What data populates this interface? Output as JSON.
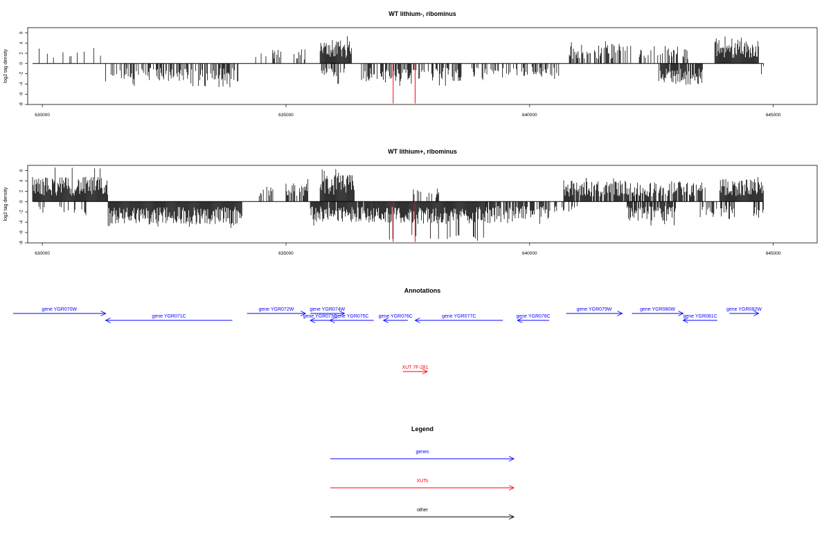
{
  "colors": {
    "genes": "#0000ff",
    "xuts": "#ff0000",
    "other": "#000000",
    "axis": "#000000"
  },
  "chart_data": [
    {
      "type": "bar",
      "title": "WT lithium-, ribominus",
      "xlabel": "",
      "ylabel": "log2 tag density",
      "xlim": [
        629700,
        645900
      ],
      "ylim": [
        -8,
        7
      ],
      "x_ticks": [
        630000,
        635000,
        640000,
        645000
      ],
      "x_tick_labels": [
        "630000",
        "635000",
        "640000",
        "645000"
      ],
      "y_ticks": [
        6,
        4,
        2,
        0,
        -2,
        -4,
        -6,
        -8
      ],
      "y_tick_labels": [
        "6",
        "4",
        "2",
        "0",
        "-2",
        "-4",
        "-6",
        "-8"
      ],
      "baseline_range": [
        629800,
        644800
      ],
      "forward_clusters": [
        {
          "start": 629850,
          "end": 631250,
          "density": 0.18,
          "mean": 2.2,
          "max": 3.4
        },
        {
          "start": 634350,
          "end": 634900,
          "density": 0.3,
          "mean": 2.0,
          "max": 3.2
        },
        {
          "start": 635150,
          "end": 635400,
          "density": 0.4,
          "mean": 2.0,
          "max": 3.4
        },
        {
          "start": 635700,
          "end": 636350,
          "density": 1.0,
          "mean": 3.0,
          "max": 5.4
        },
        {
          "start": 640800,
          "end": 642100,
          "density": 0.55,
          "mean": 2.6,
          "max": 4.4
        },
        {
          "start": 642250,
          "end": 643350,
          "density": 0.4,
          "mean": 2.4,
          "max": 4.6
        },
        {
          "start": 643800,
          "end": 644700,
          "density": 1.0,
          "mean": 3.1,
          "max": 5.4
        }
      ],
      "reverse_clusters": [
        {
          "start": 631300,
          "end": 634050,
          "density": 0.55,
          "mean": 2.4,
          "max": 4.8
        },
        {
          "start": 635700,
          "end": 636300,
          "density": 0.45,
          "mean": 2.0,
          "max": 4.2
        },
        {
          "start": 636550,
          "end": 638600,
          "density": 0.6,
          "mean": 2.4,
          "max": 4.4
        },
        {
          "start": 638800,
          "end": 639700,
          "density": 0.4,
          "mean": 2.0,
          "max": 3.6
        },
        {
          "start": 639700,
          "end": 640600,
          "density": 0.45,
          "mean": 1.8,
          "max": 3.2
        },
        {
          "start": 642650,
          "end": 643550,
          "density": 0.9,
          "mean": 2.8,
          "max": 4.6
        },
        {
          "start": 644700,
          "end": 644800,
          "density": 0.3,
          "mean": 1.5,
          "max": 2.2
        }
      ],
      "xut_signal": [
        {
          "x": 637200,
          "value": -7.8
        },
        {
          "x": 637650,
          "value": -7.8
        }
      ]
    },
    {
      "type": "bar",
      "title": "WT lithium+, ribominus",
      "xlabel": "",
      "ylabel": "log2 tag density",
      "xlim": [
        629700,
        645900
      ],
      "ylim": [
        -8,
        7
      ],
      "x_ticks": [
        630000,
        635000,
        640000,
        645000
      ],
      "x_tick_labels": [
        "630000",
        "635000",
        "640000",
        "645000"
      ],
      "y_ticks": [
        6,
        4,
        2,
        0,
        -2,
        -4,
        -6,
        -8
      ],
      "y_tick_labels": [
        "6",
        "4",
        "2",
        "0",
        "-2",
        "-4",
        "-6",
        "-8"
      ],
      "baseline_range": [
        629800,
        644800
      ],
      "forward_clusters": [
        {
          "start": 629800,
          "end": 631350,
          "density": 1.0,
          "mean": 3.3,
          "max": 6.6
        },
        {
          "start": 634450,
          "end": 634800,
          "density": 0.5,
          "mean": 2.2,
          "max": 3.2
        },
        {
          "start": 635000,
          "end": 635450,
          "density": 0.7,
          "mean": 2.6,
          "max": 4.4
        },
        {
          "start": 635700,
          "end": 636400,
          "density": 1.0,
          "mean": 3.6,
          "max": 6.6
        },
        {
          "start": 637600,
          "end": 638150,
          "density": 0.4,
          "mean": 1.8,
          "max": 2.8
        },
        {
          "start": 640700,
          "end": 642200,
          "density": 0.9,
          "mean": 2.8,
          "max": 4.6
        },
        {
          "start": 642200,
          "end": 643600,
          "density": 0.7,
          "mean": 2.6,
          "max": 4.2
        },
        {
          "start": 643900,
          "end": 644800,
          "density": 1.0,
          "mean": 3.0,
          "max": 4.8
        }
      ],
      "reverse_clusters": [
        {
          "start": 629900,
          "end": 630900,
          "density": 0.25,
          "mean": 1.6,
          "max": 3.2
        },
        {
          "start": 631350,
          "end": 634100,
          "density": 1.0,
          "mean": 3.0,
          "max": 5.2
        },
        {
          "start": 635500,
          "end": 636800,
          "density": 0.9,
          "mean": 2.8,
          "max": 5.6
        },
        {
          "start": 636800,
          "end": 639100,
          "density": 1.0,
          "mean": 3.0,
          "max": 7.6
        },
        {
          "start": 639100,
          "end": 640400,
          "density": 0.8,
          "mean": 2.4,
          "max": 4.6
        },
        {
          "start": 640400,
          "end": 641000,
          "density": 0.3,
          "mean": 1.4,
          "max": 2.2
        },
        {
          "start": 642000,
          "end": 643000,
          "density": 0.8,
          "mean": 2.6,
          "max": 4.8
        },
        {
          "start": 643500,
          "end": 644200,
          "density": 0.5,
          "mean": 2.2,
          "max": 3.8
        },
        {
          "start": 644600,
          "end": 644800,
          "density": 0.8,
          "mean": 2.2,
          "max": 3.4
        }
      ],
      "xut_signal": [
        {
          "x": 637200,
          "value": -7.8
        },
        {
          "x": 637650,
          "value": -7.8
        }
      ]
    }
  ],
  "annotations": {
    "title": "Annotations",
    "features": [
      {
        "label": "gene YGR070W",
        "start": 629400,
        "end": 631300,
        "strand": "+",
        "kind": "gene",
        "row": 0
      },
      {
        "label": "gene YGR071C",
        "start": 631300,
        "end": 633900,
        "strand": "-",
        "kind": "gene",
        "row": 1
      },
      {
        "label": "gene YGR072W",
        "start": 634200,
        "end": 635400,
        "strand": "+",
        "kind": "gene",
        "row": 0
      },
      {
        "label": "gene YGR074W",
        "start": 635500,
        "end": 636200,
        "strand": "+",
        "kind": "gene",
        "row": 0
      },
      {
        "label": "gene YGR073C",
        "start": 635500,
        "end": 635900,
        "strand": "-",
        "kind": "gene",
        "row": 1
      },
      {
        "label": "gene YGR075C",
        "start": 635900,
        "end": 636800,
        "strand": "-",
        "kind": "gene",
        "row": 1
      },
      {
        "label": "gene YGR076C",
        "start": 637000,
        "end": 637500,
        "strand": "-",
        "kind": "gene",
        "row": 1
      },
      {
        "label": "gene YGR077C",
        "start": 637650,
        "end": 639450,
        "strand": "-",
        "kind": "gene",
        "row": 1
      },
      {
        "label": "gene YGR078C",
        "start": 639750,
        "end": 640400,
        "strand": "-",
        "kind": "gene",
        "row": 1
      },
      {
        "label": "gene YGR079W",
        "start": 640750,
        "end": 641900,
        "strand": "+",
        "kind": "gene",
        "row": 0
      },
      {
        "label": "gene YGR080W",
        "start": 642100,
        "end": 643150,
        "strand": "+",
        "kind": "gene",
        "row": 0
      },
      {
        "label": "gene YGR081C",
        "start": 643150,
        "end": 643850,
        "strand": "-",
        "kind": "gene",
        "row": 1
      },
      {
        "label": "gene YGR082W",
        "start": 644100,
        "end": 644700,
        "strand": "+",
        "kind": "gene",
        "row": 0
      },
      {
        "label": "XUT 7F-281",
        "start": 637400,
        "end": 637900,
        "strand": "+",
        "kind": "xut",
        "row": 2
      }
    ]
  },
  "legend": {
    "title": "Legend",
    "items": [
      {
        "label": "genes",
        "kind": "genes"
      },
      {
        "label": "XUTs",
        "kind": "xuts"
      },
      {
        "label": "other",
        "kind": "other"
      }
    ]
  }
}
